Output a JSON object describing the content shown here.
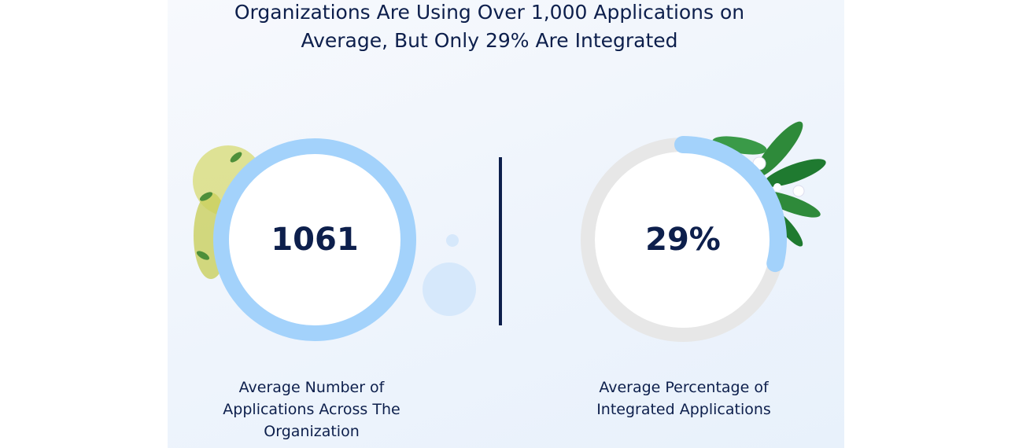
{
  "title": "Organizations Are Using Over 1,000 Applications on Average, But Only 29% Are Integrated",
  "stats": [
    {
      "value": 1061,
      "caption": "Average Number of Applications Across The Organization"
    },
    {
      "value": 29,
      "value_label": "29%",
      "caption": "Average Percentage of Integrated Applications"
    }
  ]
}
